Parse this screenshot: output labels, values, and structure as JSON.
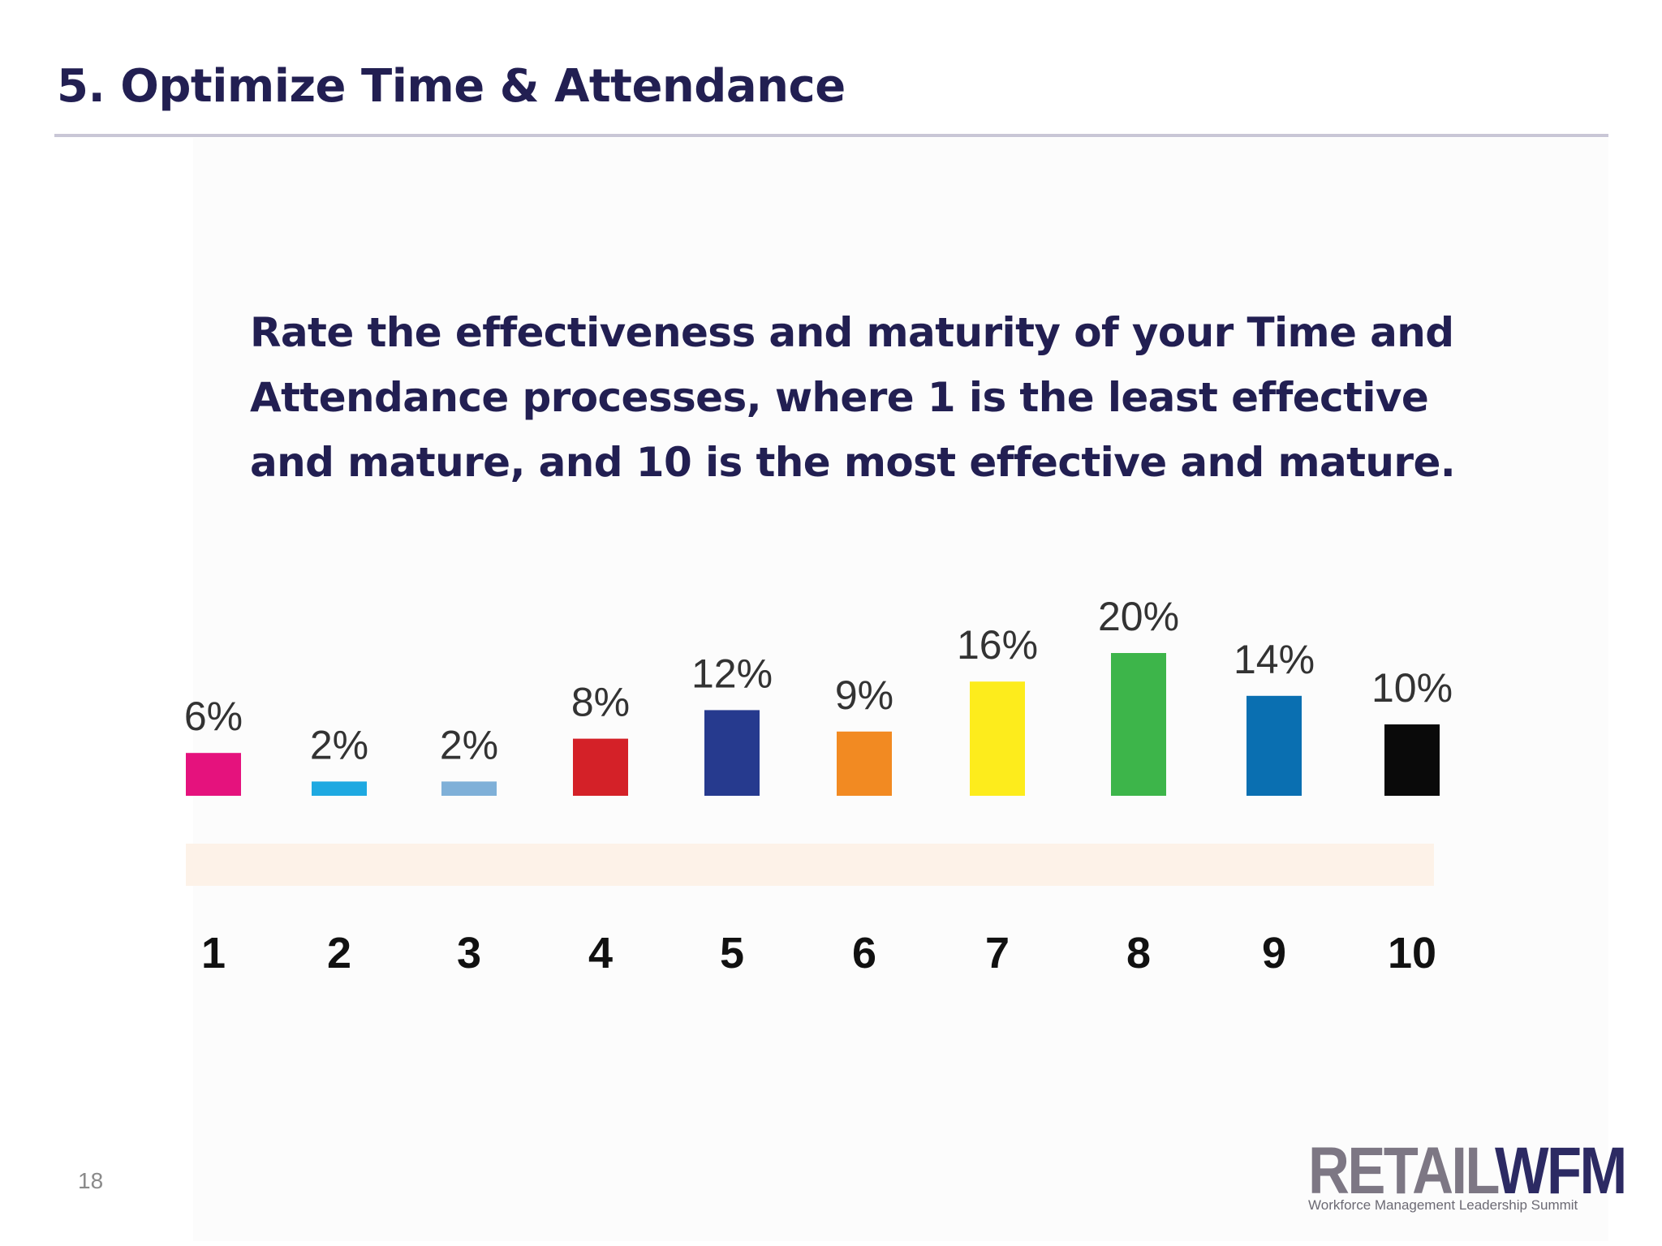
{
  "slide": {
    "title": "5. Optimize Time & Attendance",
    "question_lines": [
      "Rate the effectiveness and maturity of your Time and",
      "Attendance processes, where 1 is the least effective",
      "and mature, and 10 is the most effective and mature."
    ],
    "page_number": "18"
  },
  "logo": {
    "word_retail": "RETAIL",
    "word_wfm": "WFM",
    "tagline": "Workforce Management Leadership Summit"
  },
  "chart_data": {
    "type": "bar",
    "categories": [
      "1",
      "2",
      "3",
      "4",
      "5",
      "6",
      "7",
      "8",
      "9",
      "10"
    ],
    "values": [
      6,
      2,
      2,
      8,
      12,
      9,
      16,
      20,
      14,
      10
    ],
    "value_labels": [
      "6%",
      "2%",
      "2%",
      "8%",
      "12%",
      "9%",
      "16%",
      "20%",
      "14%",
      "10%"
    ],
    "unit": "%",
    "bar_colors": [
      "#e5127d",
      "#1ea9e1",
      "#7fb0d8",
      "#d42128",
      "#263a8e",
      "#f28a22",
      "#fdec1c",
      "#3db54a",
      "#0a6fb1",
      "#0a0a0a"
    ],
    "baseline_band_color": "#fdf2e8",
    "title": "",
    "xlabel": "",
    "ylabel": "",
    "ylim": [
      0,
      20
    ],
    "grid": false,
    "legend": "none"
  }
}
